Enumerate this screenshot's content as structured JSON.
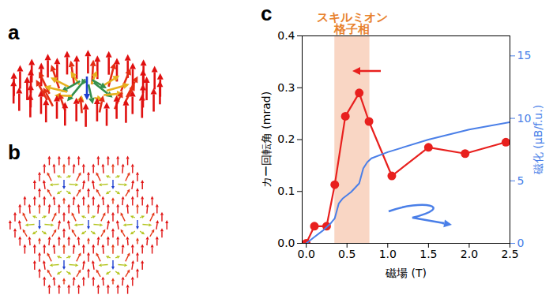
{
  "panel_labels": [
    "a",
    "b",
    "c"
  ],
  "chart_data": {
    "type": "line",
    "xlabel": "磁場 (T)",
    "ylabel": "カー回転角 (mrad)",
    "y2label": "磁化 (μB/f.u.)",
    "xlim": [
      -0.05,
      2.5
    ],
    "xticks": [
      {
        "value": 0,
        "label": "0.0"
      },
      0.5,
      {
        "value": 1,
        "label": "1.0"
      },
      1.5,
      {
        "value": 2,
        "label": "2.0"
      },
      2.5
    ],
    "ylim": [
      0,
      0.4
    ],
    "yticks": [
      {
        "value": 0,
        "label": "0.0"
      },
      0.1,
      0.2,
      0.3,
      0.4
    ],
    "y2lim": [
      0,
      16.6
    ],
    "y2ticks": [
      0,
      5,
      10,
      15
    ],
    "series": [
      {
        "color": "#e8201e",
        "marker": "circle",
        "line_style": "solid",
        "x": [
          0,
          0.1,
          0.25,
          0.35,
          0.48,
          0.65,
          0.77,
          1.05,
          1.5,
          1.95,
          2.45
        ],
        "values": [
          0,
          0.033,
          0.033,
          0.113,
          0.245,
          0.29,
          0.235,
          0.13,
          0.185,
          0.173,
          0.195
        ]
      },
      {
        "color": "#4a7fe8",
        "marker": "none",
        "line_style": "solid",
        "axis": "y2",
        "x": [
          0,
          0.1,
          0.2,
          0.3,
          0.35,
          0.4,
          0.45,
          0.55,
          0.65,
          0.7,
          0.75,
          0.8,
          1.0,
          1.5,
          2.0,
          2.5
        ],
        "values": [
          0,
          0.5,
          1.0,
          1.6,
          2.0,
          3.2,
          3.6,
          4.1,
          4.8,
          6.0,
          6.5,
          6.8,
          7.3,
          8.3,
          9.1,
          9.7
        ]
      }
    ],
    "annotations": [
      {
        "text": [
          "スキルミオン",
          "格子相"
        ],
        "x": [
          0.35,
          0.78
        ],
        "color": "#f9d6c4"
      }
    ]
  }
}
